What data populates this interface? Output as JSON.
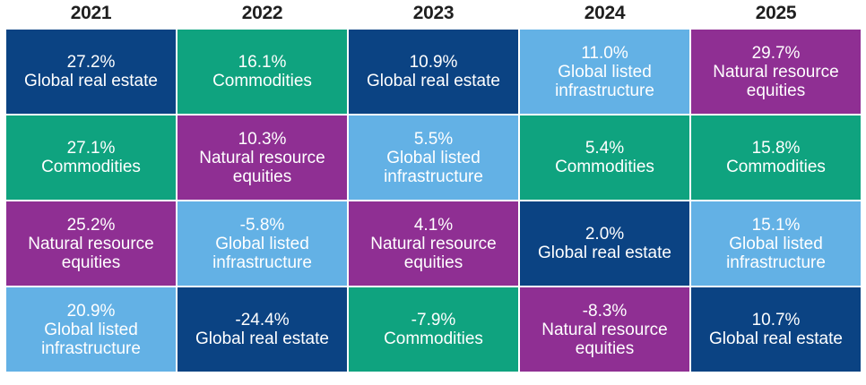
{
  "colors": {
    "Global real estate": "#0b4383",
    "Commodities": "#0fa37f",
    "Natural resource equities": "#8f2f93",
    "Global listed infrastructure": "#63b1e5"
  },
  "chart_data": {
    "type": "table",
    "title": "",
    "years": [
      "2021",
      "2022",
      "2023",
      "2024",
      "2025"
    ],
    "columns": [
      {
        "year": "2021",
        "cells": [
          {
            "value": "27.2%",
            "label": "Global real estate"
          },
          {
            "value": "27.1%",
            "label": "Commodities"
          },
          {
            "value": "25.2%",
            "label": "Natural resource equities"
          },
          {
            "value": "20.9%",
            "label": "Global listed infrastructure"
          }
        ]
      },
      {
        "year": "2022",
        "cells": [
          {
            "value": "16.1%",
            "label": "Commodities"
          },
          {
            "value": "10.3%",
            "label": "Natural resource equities"
          },
          {
            "value": "-5.8%",
            "label": "Global listed infrastructure"
          },
          {
            "value": "-24.4%",
            "label": "Global real estate"
          }
        ]
      },
      {
        "year": "2023",
        "cells": [
          {
            "value": "10.9%",
            "label": "Global real estate"
          },
          {
            "value": "5.5%",
            "label": "Global listed infrastructure"
          },
          {
            "value": "4.1%",
            "label": "Natural resource equities"
          },
          {
            "value": "-7.9%",
            "label": "Commodities"
          }
        ]
      },
      {
        "year": "2024",
        "cells": [
          {
            "value": "11.0%",
            "label": "Global listed infrastructure"
          },
          {
            "value": "5.4%",
            "label": "Commodities"
          },
          {
            "value": "2.0%",
            "label": "Global real estate"
          },
          {
            "value": "-8.3%",
            "label": "Natural resource equities"
          }
        ]
      },
      {
        "year": "2025",
        "cells": [
          {
            "value": "29.7%",
            "label": "Natural resource equities"
          },
          {
            "value": "15.8%",
            "label": "Commodities"
          },
          {
            "value": "15.1%",
            "label": "Global listed infrastructure"
          },
          {
            "value": "10.7%",
            "label": "Global real estate"
          }
        ]
      }
    ]
  }
}
